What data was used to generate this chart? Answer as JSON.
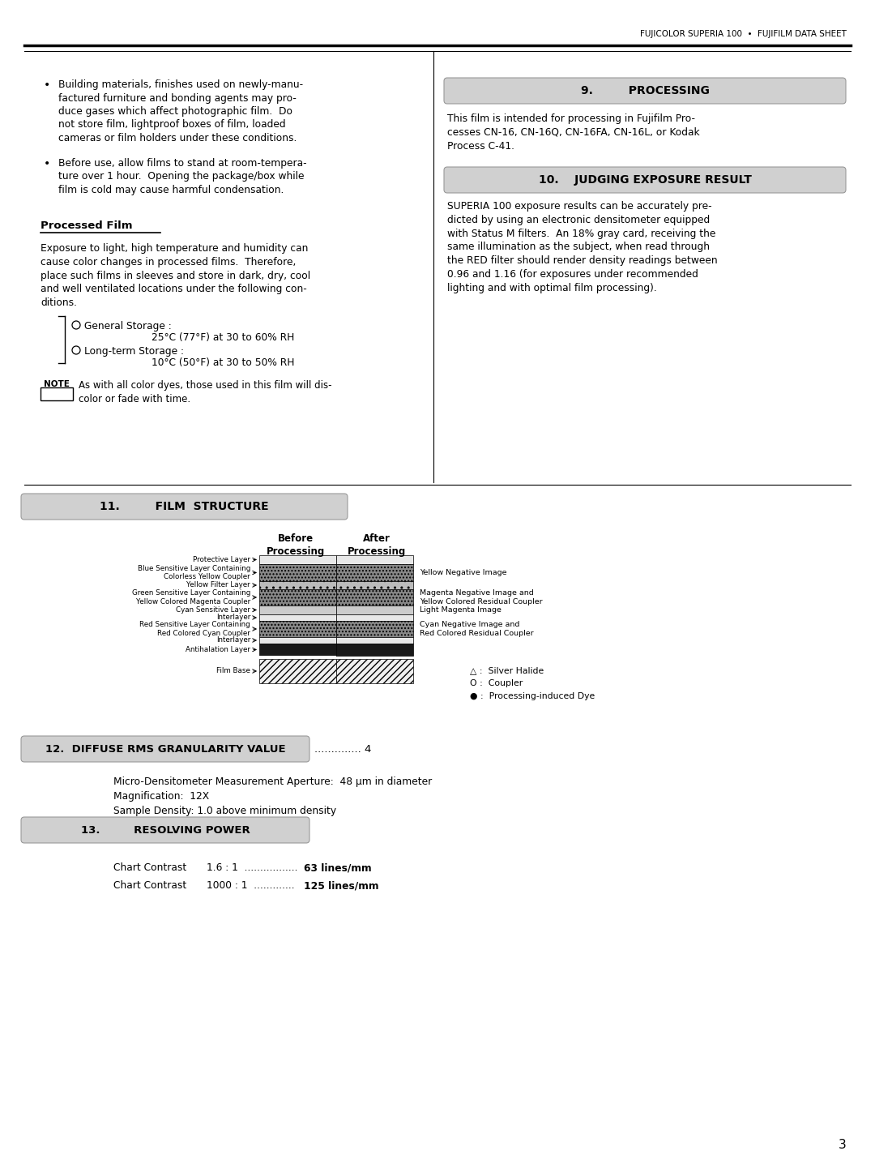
{
  "page_header": "FUJICOLOR SUPERIA 100  •  FUJIFILM DATA SHEET",
  "page_number": "3",
  "background_color": "#ffffff",
  "text_color": "#000000",
  "section_bg_color": "#d0d0d0",
  "top_line_color": "#000000",
  "bullet_point_1": "Building materials, finishes used on newly-manu-\nfactured furniture and bonding agents may pro-\nduce gases which affect photographic film.  Do\nnot store film, lightproof boxes of film, loaded\ncameras or film holders under these conditions.",
  "bullet_point_2": "Before use, allow films to stand at room-tempera-\nture over 1 hour.  Opening the package/box while\nfilm is cold may cause harmful condensation.",
  "processed_film_title": "Processed Film",
  "processed_film_body": "Exposure to light, high temperature and humidity can\ncause color changes in processed films.  Therefore,\nplace such films in sleeves and store in dark, dry, cool\nand well ventilated locations under the following con-\nditions.",
  "storage_general": "General Storage :",
  "storage_general_detail": "25°C (77°F) at 30 to 60% RH",
  "storage_longterm": "Long-term Storage :",
  "storage_longterm_detail": "10°C (50°F) at 30 to 50% RH",
  "note_text": "As with all color dyes, those used in this film will dis-\ncolor or fade with time.",
  "sec9_title": "9.         PROCESSING",
  "sec9_body": "This film is intended for processing in Fujifilm Pro-\ncesses CN-16, CN-16Q, CN-16FA, CN-16L, or Kodak\nProcess C-41.",
  "sec10_title": "10.    JUDGING EXPOSURE RESULT",
  "sec10_body": "SUPERIA 100 exposure results can be accurately pre-\ndicted by using an electronic densitometer equipped\nwith Status M filters.  An 18% gray card, receiving the\nsame illumination as the subject, when read through\nthe RED filter should render density readings between\n0.96 and 1.16 (for exposures under recommended\nlighting and with optimal film processing).",
  "sec11_title": "11.         FILM  STRUCTURE",
  "sec12_title": "12.  DIFFUSE RMS GRANULARITY VALUE",
  "sec12_value": ".............. 4",
  "sec12_body": "Micro-Densitometer Measurement Aperture:  48 μm in diameter\nMagnification:  12X\nSample Density: 1.0 above minimum density",
  "sec13_title": "13.         RESOLVING POWER",
  "sec13_line1_label": "Chart Contrast",
  "sec13_line1_ratio": "1.6 : 1  .................",
  "sec13_line1_value": "63 lines/mm",
  "sec13_line2_label": "Chart Contrast",
  "sec13_line2_ratio": "1000 : 1  .............",
  "sec13_line2_value": "125 lines/mm",
  "legend_triangle": "△ :  Silver Halide",
  "legend_circle": "O :  Coupler",
  "legend_dot": "● :  Processing-induced Dye",
  "before_label": "Before\nProcessing",
  "after_label": "After\nProcessing"
}
